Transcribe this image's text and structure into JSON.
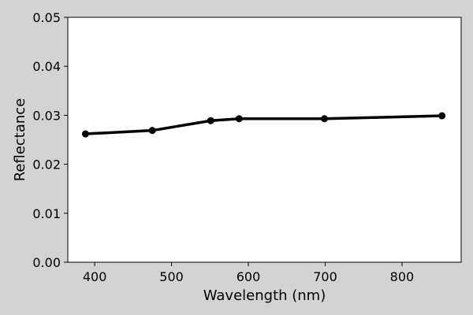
{
  "colors": {
    "figure_background": "#d3d3d3",
    "plot_background": "#ffffff",
    "line": "#000000"
  },
  "chart_data": {
    "type": "line",
    "title": "",
    "xlabel": "Wavelength (nm)",
    "ylabel": "Reflectance",
    "xlim": [
      365,
      877
    ],
    "ylim": [
      0.0,
      0.05
    ],
    "xticks": [
      400,
      500,
      600,
      700,
      800
    ],
    "xtick_labels": [
      "400",
      "500",
      "600",
      "700",
      "800"
    ],
    "yticks": [
      0.0,
      0.01,
      0.02,
      0.03,
      0.04,
      0.05
    ],
    "ytick_labels": [
      "0.00",
      "0.01",
      "0.02",
      "0.03",
      "0.04",
      "0.05"
    ],
    "grid": false,
    "legend": false,
    "series": [
      {
        "x": [
          388,
          475,
          551,
          588,
          699,
          852
        ],
        "y": [
          0.0262,
          0.0269,
          0.0289,
          0.0293,
          0.0293,
          0.0299
        ],
        "marker": "circle"
      }
    ]
  }
}
